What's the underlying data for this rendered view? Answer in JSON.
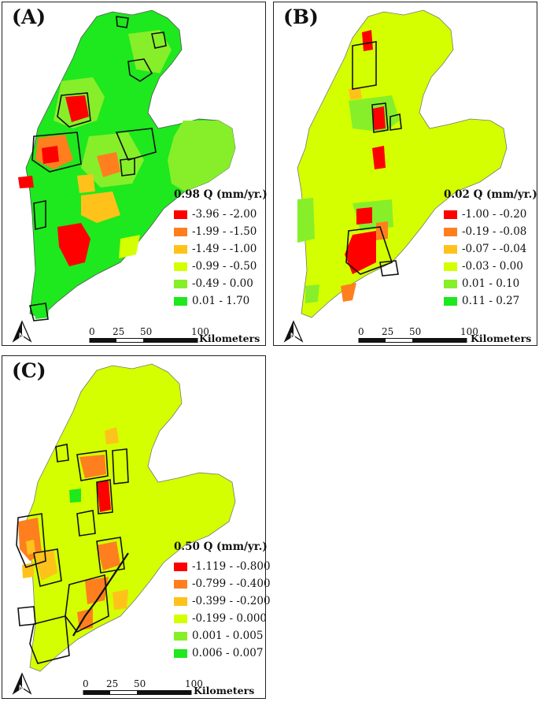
{
  "panels": [
    {
      "label": "(A)",
      "legend": {
        "title": "0.98 Q (mm/yr.)",
        "classes": [
          {
            "range": "-3.96 - -2.00",
            "color": "#ff0000"
          },
          {
            "range": "-1.99 - -1.50",
            "color": "#ff7f1f"
          },
          {
            "range": "-1.49 - -1.00",
            "color": "#ffc21a"
          },
          {
            "range": "-0.99 - -0.50",
            "color": "#d4ff00"
          },
          {
            "range": "-0.49 - 0.00",
            "color": "#86ef2a"
          },
          {
            "range": "0.01 - 1.70",
            "color": "#1ee81e"
          }
        ]
      },
      "scale": {
        "ticks": [
          "0",
          "25",
          "50",
          "100"
        ],
        "unit": "Kilometers"
      }
    },
    {
      "label": "(B)",
      "legend": {
        "title": "0.02 Q (mm/yr.)",
        "classes": [
          {
            "range": "-1.00 - -0.20",
            "color": "#ff0000"
          },
          {
            "range": "-0.19 - -0.08",
            "color": "#ff7f1f"
          },
          {
            "range": "-0.07 - -0.04",
            "color": "#ffc21a"
          },
          {
            "range": "-0.03 - 0.00",
            "color": "#d4ff00"
          },
          {
            "range": "0.01 - 0.10",
            "color": "#86ef2a"
          },
          {
            "range": "0.11 - 0.27",
            "color": "#1ee81e"
          }
        ]
      },
      "scale": {
        "ticks": [
          "0",
          "25",
          "50",
          "100"
        ],
        "unit": "Kilometers"
      }
    },
    {
      "label": "(C)",
      "legend": {
        "title": "0.50 Q (mm/yr.)",
        "classes": [
          {
            "range": "-1.119 - -0.800",
            "color": "#ff0000"
          },
          {
            "range": "-0.799 - -0.400",
            "color": "#ff7f1f"
          },
          {
            "range": "-0.399 - -0.200",
            "color": "#ffc21a"
          },
          {
            "range": "-0.199 - 0.000",
            "color": "#d4ff00"
          },
          {
            "range": "0.001 - 0.005",
            "color": "#86ef2a"
          },
          {
            "range": "0.006 - 0.007",
            "color": "#1ee81e"
          }
        ]
      },
      "scale": {
        "ticks": [
          "0",
          "25",
          "50",
          "100"
        ],
        "unit": "Kilometers"
      }
    }
  ]
}
